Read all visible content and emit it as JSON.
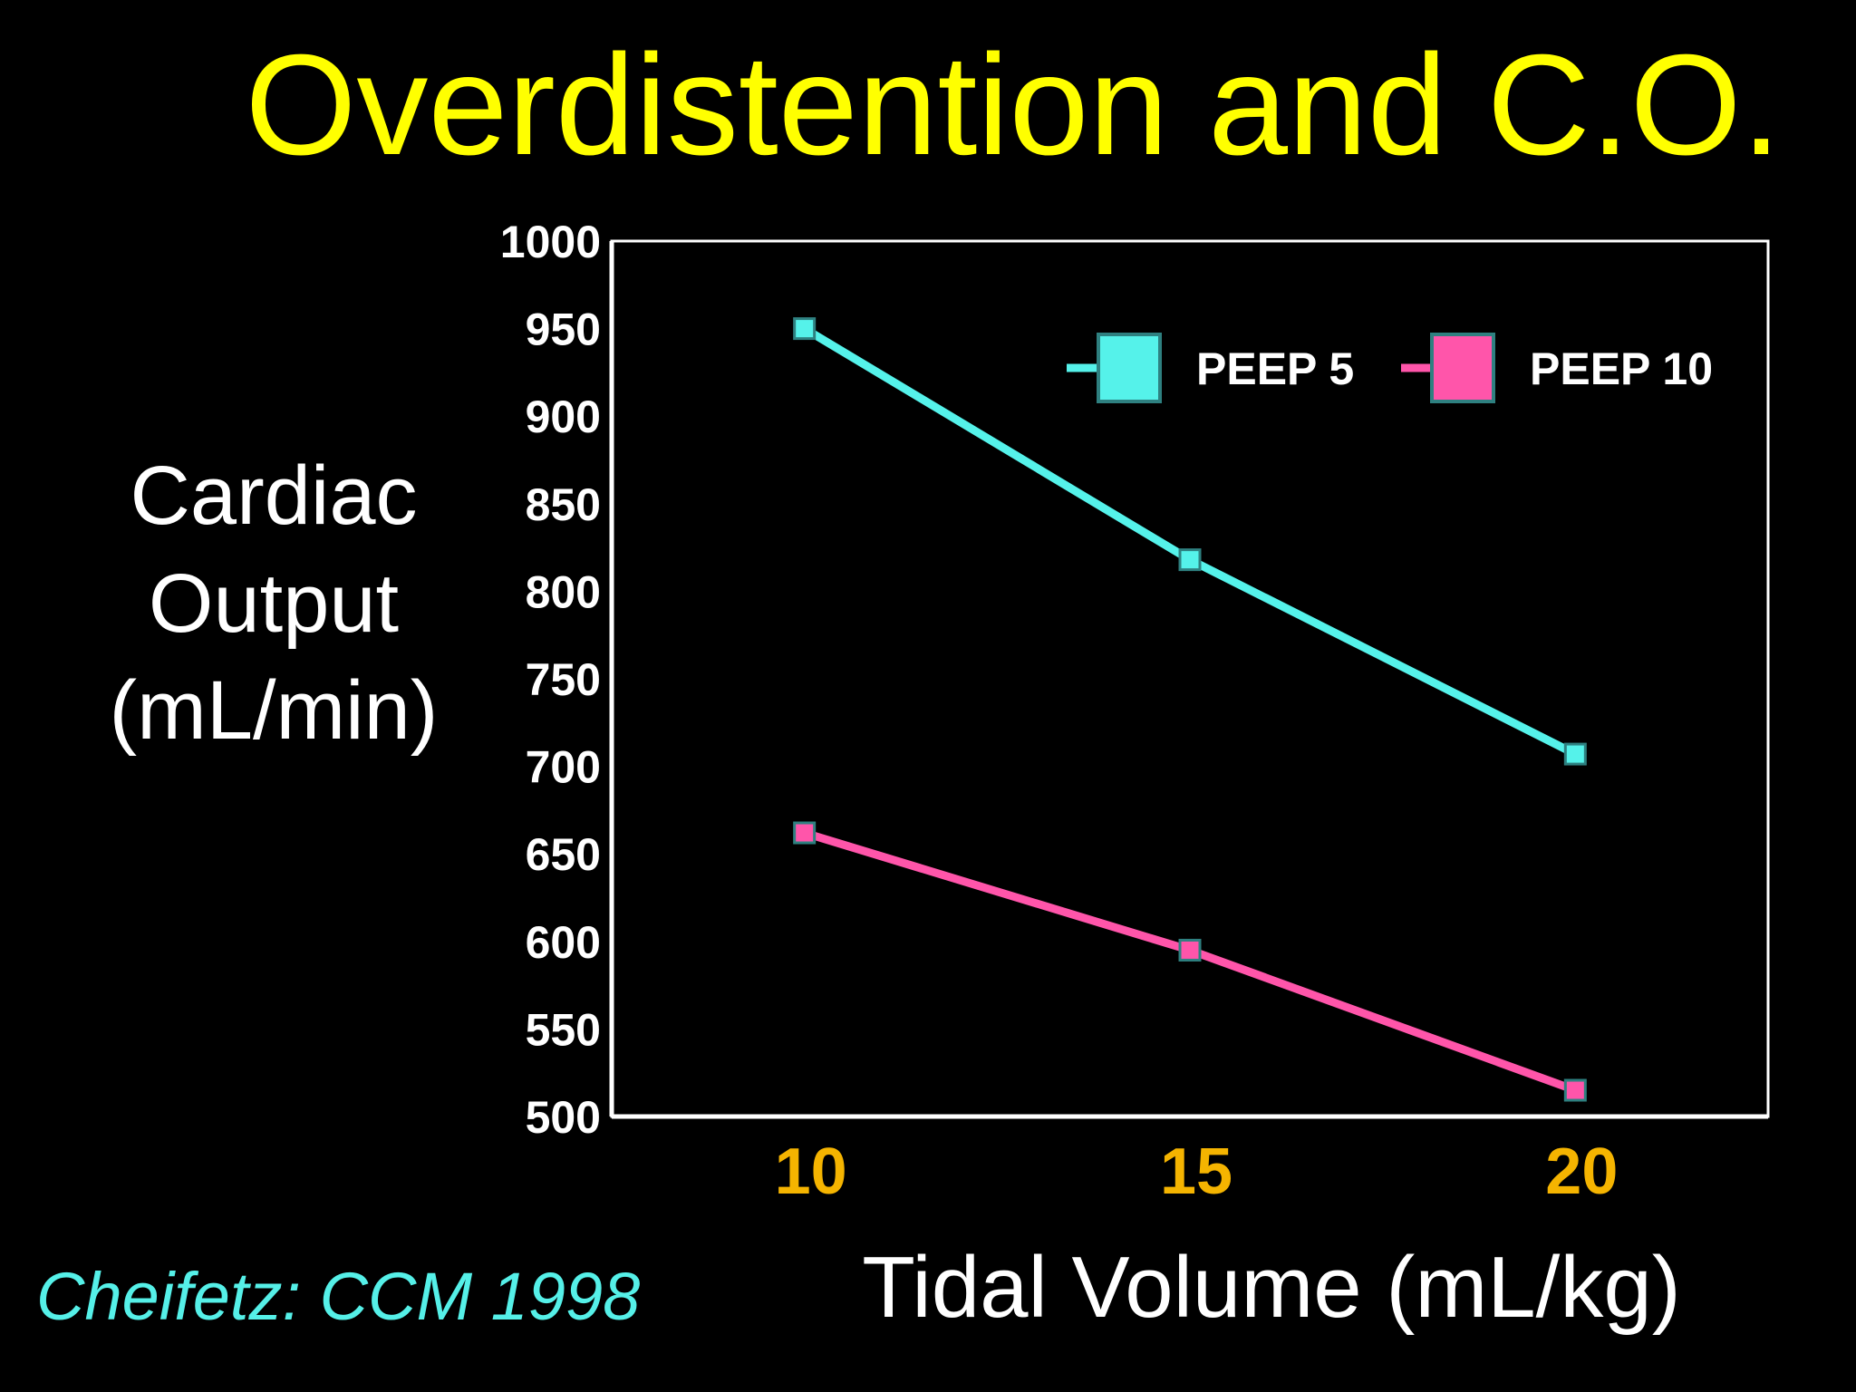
{
  "slide": {
    "title": "Overdistention and C.O.",
    "citation": "Cheifetz: CCM 1998"
  },
  "colors": {
    "background": "#000000",
    "title": "#FFFF00",
    "text": "#FFFFFF",
    "x_tick": "#F5B400",
    "citation": "#55F0E8",
    "axis": "#FFFFFF"
  },
  "chart_data": {
    "type": "line",
    "title": "Overdistention and C.O.",
    "ylabel_lines": [
      "Cardiac",
      "Output",
      "(mL/min)"
    ],
    "xlabel": "Tidal Volume (mL/kg)",
    "x": [
      10,
      15,
      20
    ],
    "x_tick_labels": [
      "10",
      "15",
      "20"
    ],
    "xlim": [
      7.5,
      22.5
    ],
    "ylim": [
      500,
      1000
    ],
    "y_ticks": [
      500,
      550,
      600,
      650,
      700,
      750,
      800,
      850,
      900,
      950,
      1000
    ],
    "y_tick_labels": [
      "500",
      "550",
      "600",
      "650",
      "700",
      "750",
      "800",
      "850",
      "900",
      "950",
      "1000"
    ],
    "grid": false,
    "legend_position": "top-right",
    "series": [
      {
        "name": "PEEP 5",
        "color": "#55F2EA",
        "values": [
          950,
          818,
          707
        ]
      },
      {
        "name": "PEEP 10",
        "color": "#FF55AA",
        "values": [
          662,
          595,
          515
        ]
      }
    ]
  }
}
